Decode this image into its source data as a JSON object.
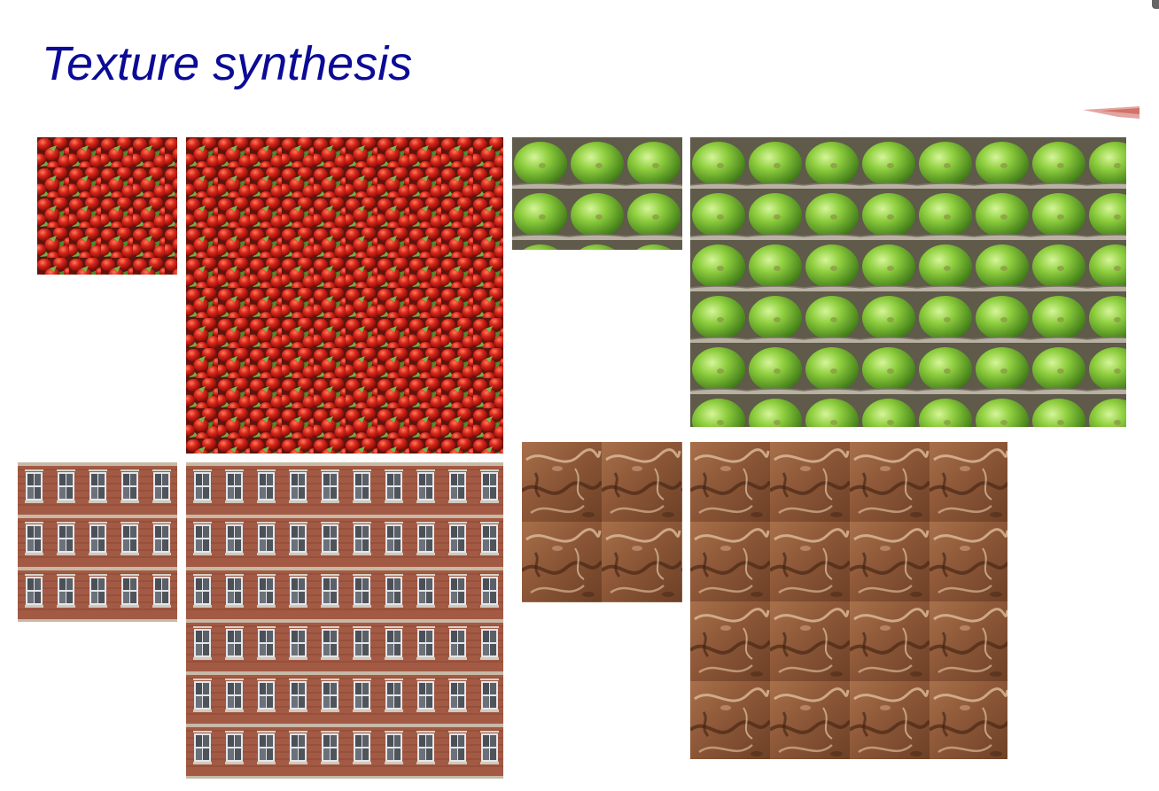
{
  "slide": {
    "title": "Texture synthesis"
  },
  "colors": {
    "title": "#0b0b96",
    "background": "#ffffff"
  },
  "texture_pairs": [
    {
      "texture": "radishes",
      "source_icon": "radish-sample-image",
      "result_icon": "radish-synthesized-image"
    },
    {
      "texture": "green apples in crates",
      "source_icon": "apple-sample-image",
      "result_icon": "apple-synthesized-image"
    },
    {
      "texture": "brick building facade",
      "source_icon": "facade-sample-image",
      "result_icon": "facade-synthesized-image"
    },
    {
      "texture": "chocolate swirl",
      "source_icon": "chocolate-sample-image",
      "result_icon": "chocolate-synthesized-image"
    }
  ]
}
